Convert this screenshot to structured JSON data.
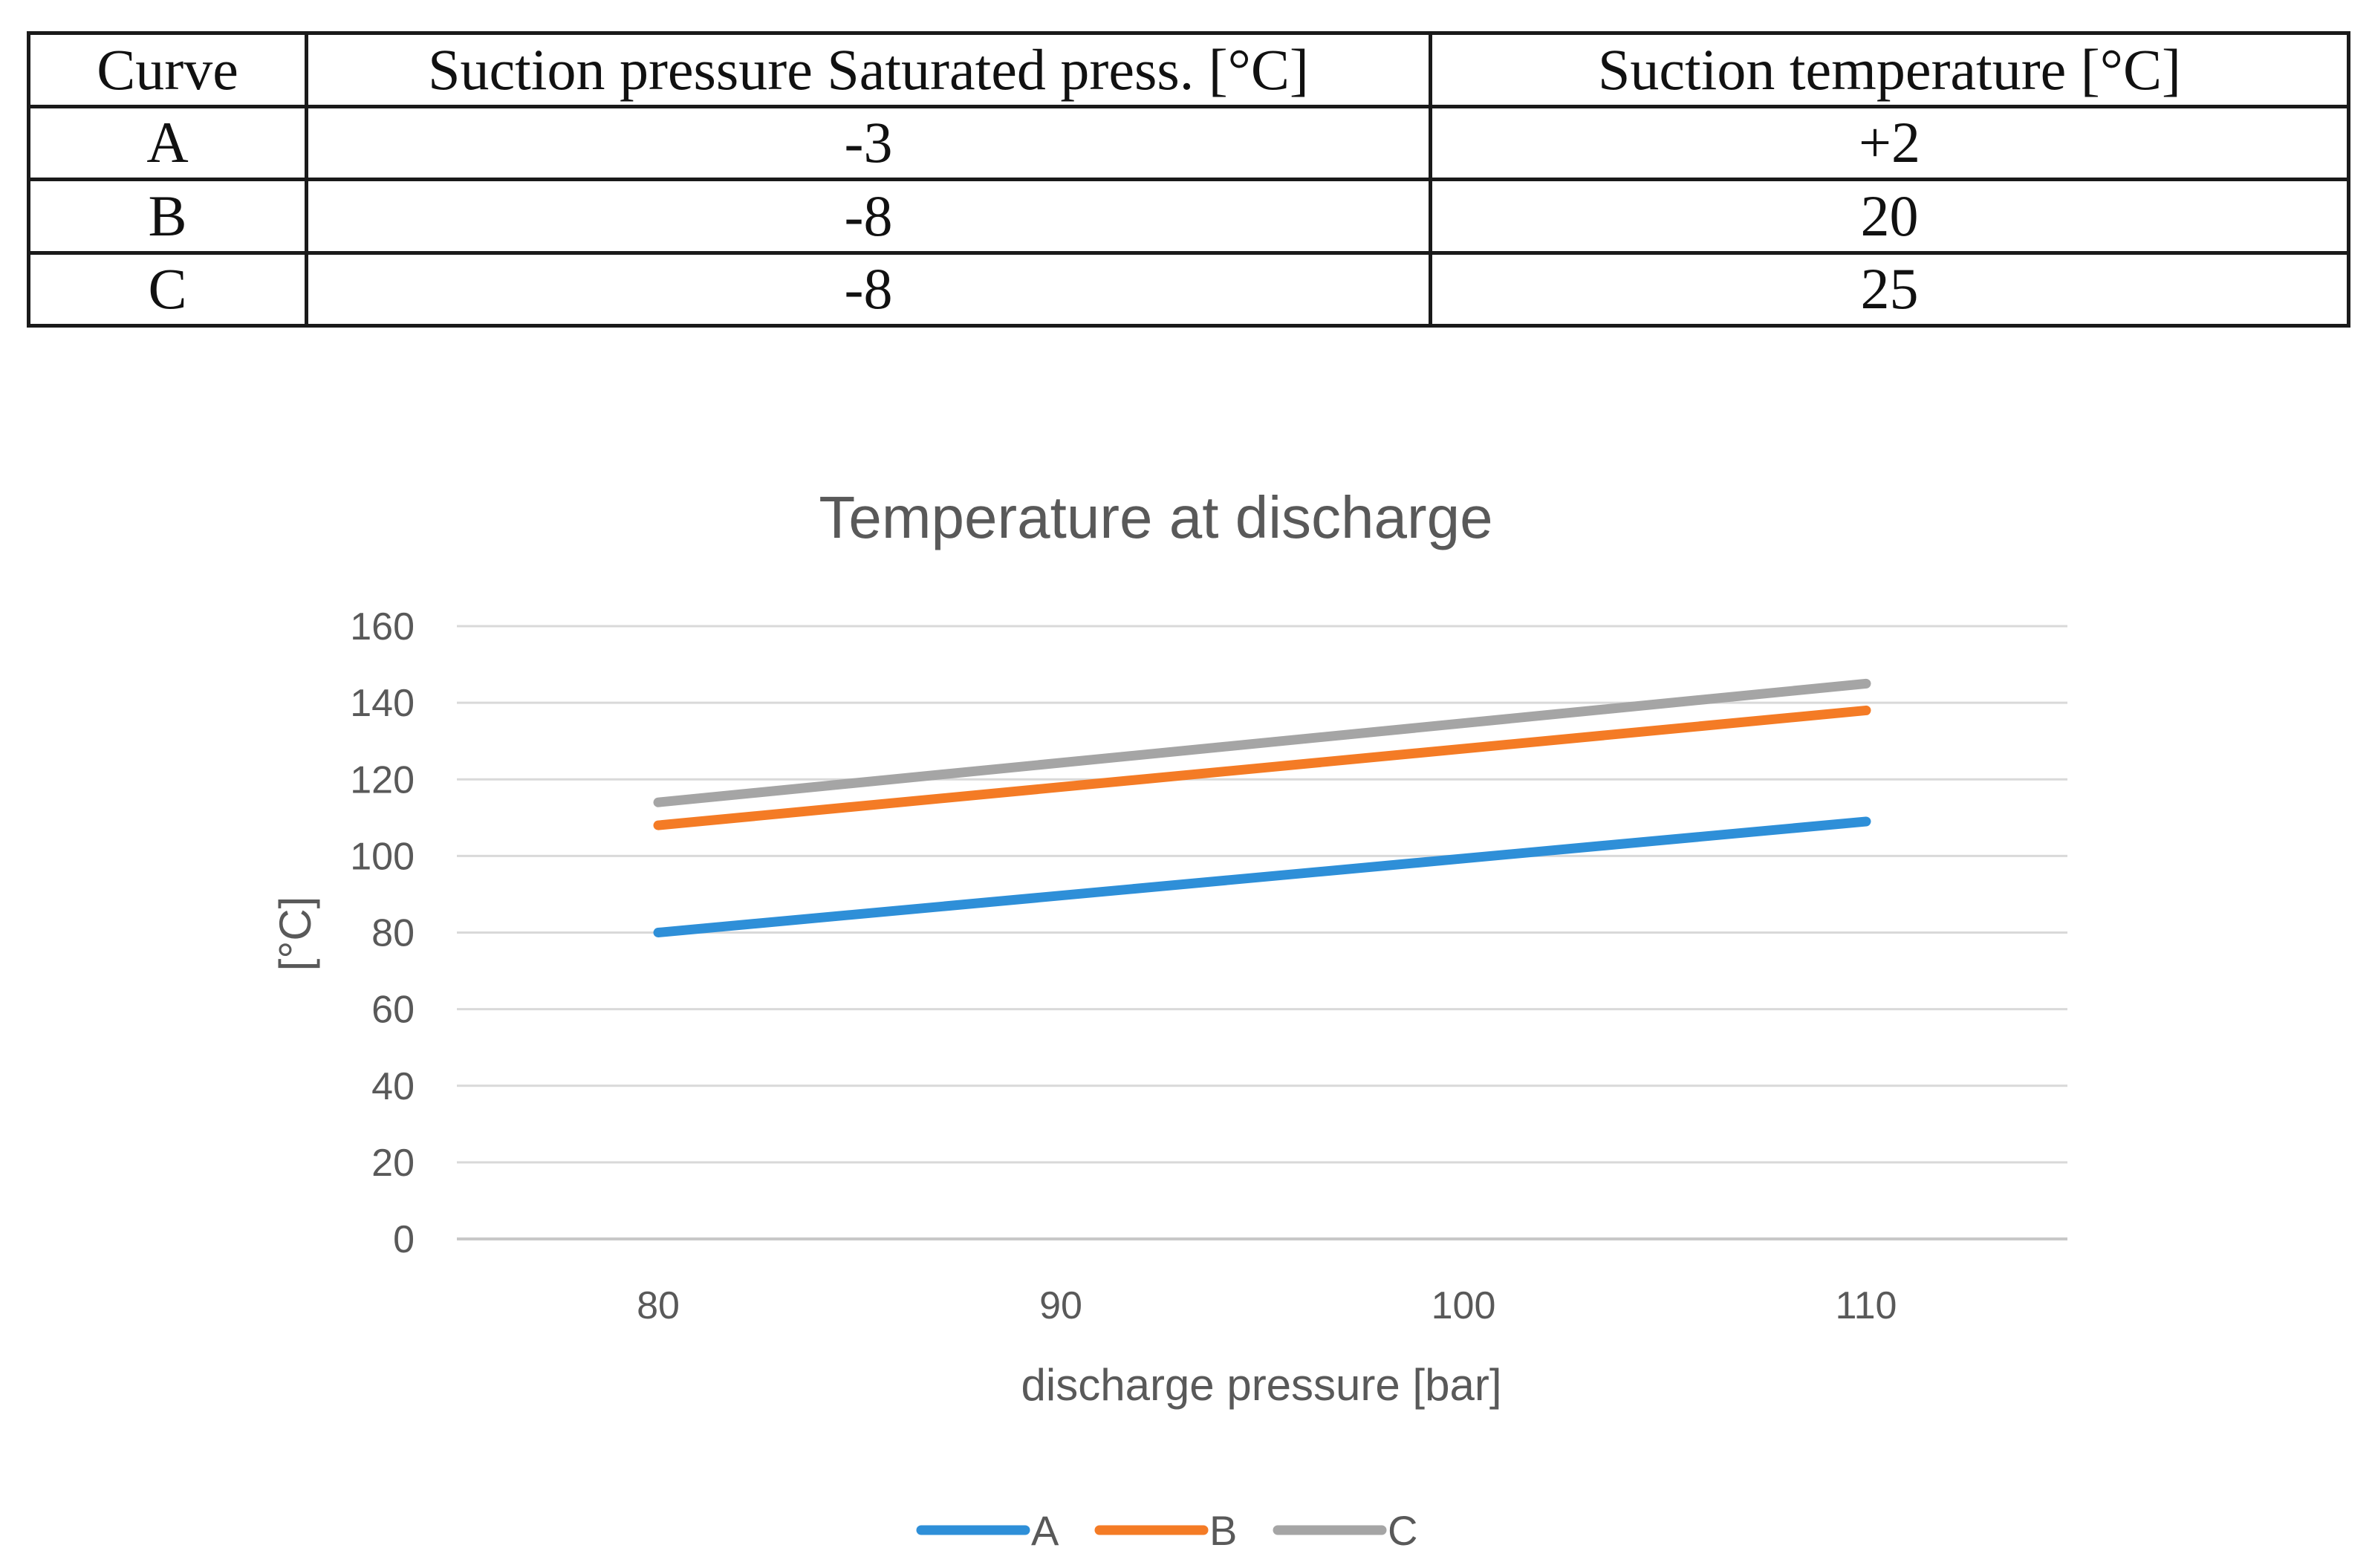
{
  "table": {
    "headers": [
      "Curve",
      "Suction pressure Saturated press. [°C]",
      "Suction temperature [°C]"
    ],
    "rows": [
      [
        "A",
        "-3",
        "+2"
      ],
      [
        "B",
        "-8",
        "20"
      ],
      [
        "C",
        "-8",
        "25"
      ]
    ]
  },
  "chart_data": {
    "type": "line",
    "title": "Temperature at discharge",
    "xlabel": "discharge pressure [bar]",
    "ylabel": "[°C]",
    "x": [
      80,
      110
    ],
    "xticks": [
      "80",
      "90",
      "100",
      "110"
    ],
    "xlim": [
      75,
      115
    ],
    "ylim": [
      0,
      160
    ],
    "yticks": [
      "0",
      "20",
      "40",
      "60",
      "80",
      "100",
      "120",
      "140",
      "160"
    ],
    "grid": true,
    "legend": "bottom",
    "series": [
      {
        "name": "A",
        "color": "#2e8fd8",
        "values": [
          80,
          109
        ]
      },
      {
        "name": "B",
        "color": "#f47b25",
        "values": [
          108,
          138
        ]
      },
      {
        "name": "C",
        "color": "#a5a5a5",
        "values": [
          114,
          145
        ]
      }
    ]
  }
}
